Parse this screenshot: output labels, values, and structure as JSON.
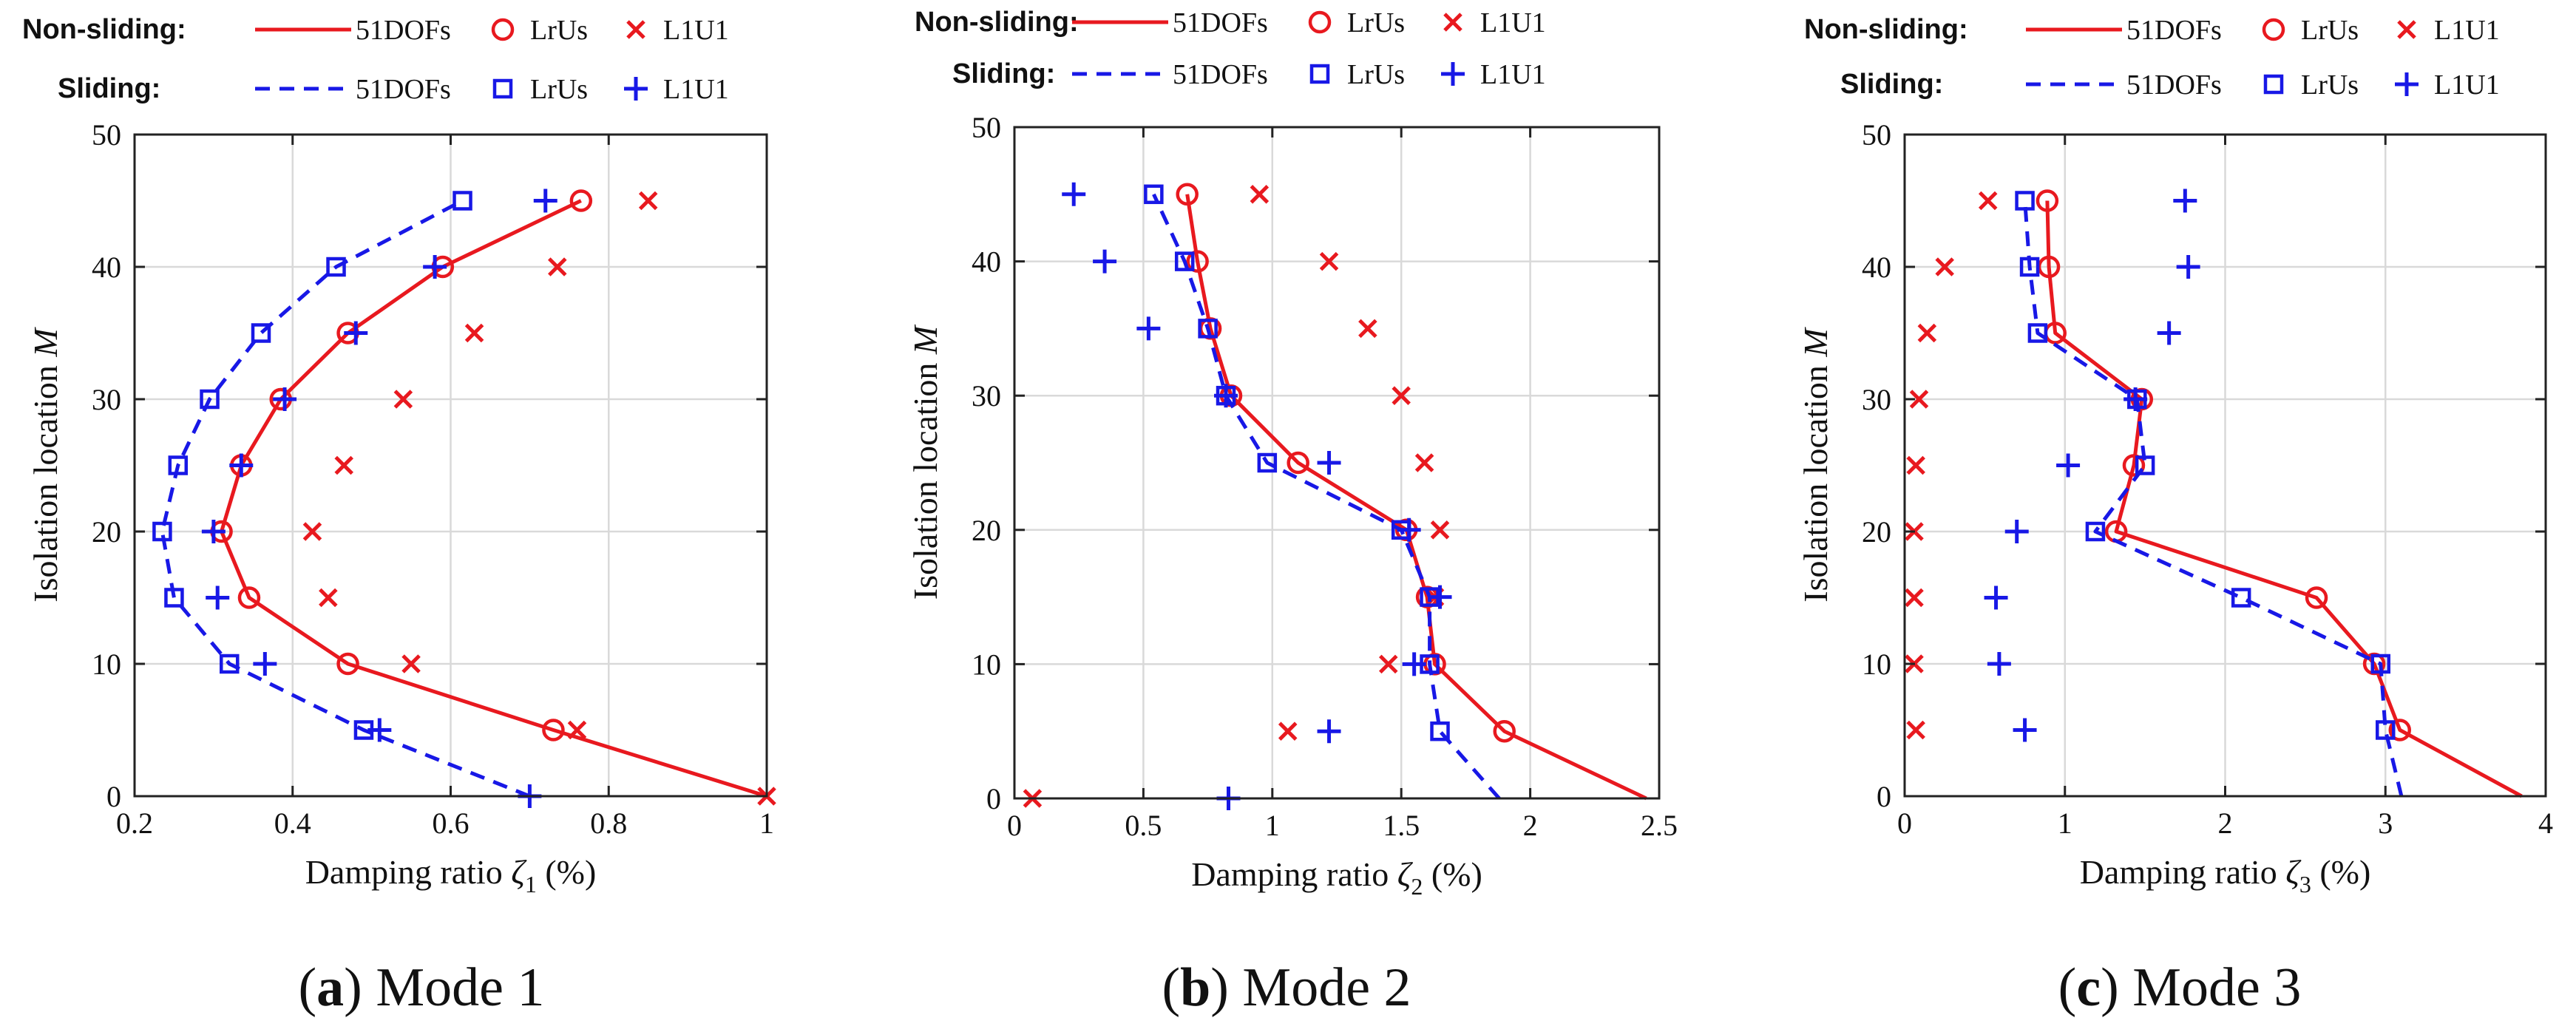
{
  "legend": {
    "nonsliding_label": "Non-sliding:",
    "sliding_label": "Sliding:",
    "entries": [
      "51DOFs",
      "LrUs",
      "L1U1"
    ]
  },
  "colors": {
    "nonsliding": "#e8191f",
    "sliding": "#1818e6",
    "grid": "#d9d9d9",
    "axis": "#222222"
  },
  "chart_data": [
    {
      "type": "line",
      "panel_label": "a",
      "caption": "Mode 1",
      "xlabel": "Damping ratio",
      "xsymbol": "ζ",
      "xsub": "1",
      "xunit": "(%)",
      "ylabel": "Isolation location",
      "ysymbol": "M",
      "xlim": [
        0.2,
        1.0
      ],
      "ylim": [
        0,
        50
      ],
      "xticks": [
        0.2,
        0.4,
        0.6,
        0.8,
        1.0
      ],
      "xticklabels": [
        "0.2",
        "0.4",
        "0.6",
        "0.8",
        "1"
      ],
      "yticks": [
        0,
        10,
        20,
        30,
        40,
        50
      ],
      "yticklabels": [
        "0",
        "10",
        "20",
        "30",
        "40",
        "50"
      ],
      "grid": true,
      "series": [
        {
          "name": "Non-sliding 51DOFs",
          "style": "solid",
          "color": "nonsliding",
          "points": [
            [
              1.0,
              0
            ],
            [
              0.73,
              5
            ],
            [
              0.47,
              10
            ],
            [
              0.345,
              15
            ],
            [
              0.31,
              20
            ],
            [
              0.335,
              25
            ],
            [
              0.385,
              30
            ],
            [
              0.47,
              35
            ],
            [
              0.59,
              40
            ],
            [
              0.765,
              45
            ]
          ]
        },
        {
          "name": "Non-sliding LrUs",
          "marker": "circle",
          "color": "nonsliding",
          "points": [
            [
              0.73,
              5
            ],
            [
              0.47,
              10
            ],
            [
              0.345,
              15
            ],
            [
              0.31,
              20
            ],
            [
              0.335,
              25
            ],
            [
              0.385,
              30
            ],
            [
              0.47,
              35
            ],
            [
              0.59,
              40
            ],
            [
              0.765,
              45
            ]
          ]
        },
        {
          "name": "Non-sliding L1U1",
          "marker": "x",
          "color": "nonsliding",
          "points": [
            [
              1.0,
              0
            ],
            [
              0.76,
              5
            ],
            [
              0.55,
              10
            ],
            [
              0.445,
              15
            ],
            [
              0.425,
              20
            ],
            [
              0.465,
              25
            ],
            [
              0.54,
              30
            ],
            [
              0.63,
              35
            ],
            [
              0.735,
              40
            ],
            [
              0.85,
              45
            ]
          ]
        },
        {
          "name": "Sliding 51DOFs",
          "style": "dashed",
          "color": "sliding",
          "points": [
            [
              0.7,
              0
            ],
            [
              0.49,
              5
            ],
            [
              0.32,
              10
            ],
            [
              0.25,
              15
            ],
            [
              0.235,
              20
            ],
            [
              0.255,
              25
            ],
            [
              0.295,
              30
            ],
            [
              0.36,
              35
            ],
            [
              0.455,
              40
            ],
            [
              0.615,
              45
            ]
          ]
        },
        {
          "name": "Sliding LrUs",
          "marker": "square",
          "color": "sliding",
          "points": [
            [
              0.49,
              5
            ],
            [
              0.32,
              10
            ],
            [
              0.25,
              15
            ],
            [
              0.235,
              20
            ],
            [
              0.255,
              25
            ],
            [
              0.295,
              30
            ],
            [
              0.36,
              35
            ],
            [
              0.455,
              40
            ],
            [
              0.615,
              45
            ]
          ]
        },
        {
          "name": "Sliding L1U1",
          "marker": "plus",
          "color": "sliding",
          "points": [
            [
              0.7,
              0
            ],
            [
              0.51,
              5
            ],
            [
              0.365,
              10
            ],
            [
              0.305,
              15
            ],
            [
              0.3,
              20
            ],
            [
              0.335,
              25
            ],
            [
              0.39,
              30
            ],
            [
              0.48,
              35
            ],
            [
              0.58,
              40
            ],
            [
              0.72,
              45
            ]
          ]
        }
      ]
    },
    {
      "type": "line",
      "panel_label": "b",
      "caption": "Mode 2",
      "xlabel": "Damping ratio",
      "xsymbol": "ζ",
      "xsub": "2",
      "xunit": "(%)",
      "ylabel": "Isolation location",
      "ysymbol": "M",
      "xlim": [
        0,
        2.5
      ],
      "ylim": [
        0,
        50
      ],
      "xticks": [
        0,
        0.5,
        1.0,
        1.5,
        2.0,
        2.5
      ],
      "xticklabels": [
        "0",
        "0.5",
        "1",
        "1.5",
        "2",
        "2.5"
      ],
      "yticks": [
        0,
        10,
        20,
        30,
        40,
        50
      ],
      "yticklabels": [
        "0",
        "10",
        "20",
        "30",
        "40",
        "50"
      ],
      "grid": true,
      "series": [
        {
          "name": "Non-sliding 51DOFs",
          "style": "solid",
          "color": "nonsliding",
          "points": [
            [
              2.45,
              0
            ],
            [
              1.9,
              5
            ],
            [
              1.63,
              10
            ],
            [
              1.6,
              15
            ],
            [
              1.52,
              20
            ],
            [
              1.1,
              25
            ],
            [
              0.84,
              30
            ],
            [
              0.76,
              35
            ],
            [
              0.71,
              40
            ],
            [
              0.67,
              45
            ]
          ]
        },
        {
          "name": "Non-sliding LrUs",
          "marker": "circle",
          "color": "nonsliding",
          "points": [
            [
              1.9,
              5
            ],
            [
              1.63,
              10
            ],
            [
              1.6,
              15
            ],
            [
              1.52,
              20
            ],
            [
              1.1,
              25
            ],
            [
              0.84,
              30
            ],
            [
              0.76,
              35
            ],
            [
              0.71,
              40
            ],
            [
              0.67,
              45
            ]
          ]
        },
        {
          "name": "Non-sliding L1U1",
          "marker": "x",
          "color": "nonsliding",
          "points": [
            [
              0.07,
              0
            ],
            [
              1.06,
              5
            ],
            [
              1.45,
              10
            ],
            [
              1.63,
              15
            ],
            [
              1.65,
              20
            ],
            [
              1.59,
              25
            ],
            [
              1.5,
              30
            ],
            [
              1.37,
              35
            ],
            [
              1.22,
              40
            ],
            [
              0.95,
              45
            ]
          ]
        },
        {
          "name": "Sliding 51DOFs",
          "style": "dashed",
          "color": "sliding",
          "points": [
            [
              1.88,
              0
            ],
            [
              1.65,
              5
            ],
            [
              1.61,
              10
            ],
            [
              1.61,
              15
            ],
            [
              1.5,
              20
            ],
            [
              0.98,
              25
            ],
            [
              0.82,
              30
            ],
            [
              0.75,
              35
            ],
            [
              0.66,
              40
            ],
            [
              0.54,
              45
            ]
          ]
        },
        {
          "name": "Sliding LrUs",
          "marker": "square",
          "color": "sliding",
          "points": [
            [
              1.65,
              5
            ],
            [
              1.61,
              10
            ],
            [
              1.61,
              15
            ],
            [
              1.5,
              20
            ],
            [
              0.98,
              25
            ],
            [
              0.82,
              30
            ],
            [
              0.75,
              35
            ],
            [
              0.66,
              40
            ],
            [
              0.54,
              45
            ]
          ]
        },
        {
          "name": "Sliding L1U1",
          "marker": "plus",
          "color": "sliding",
          "points": [
            [
              0.83,
              0
            ],
            [
              1.22,
              5
            ],
            [
              1.55,
              10
            ],
            [
              1.65,
              15
            ],
            [
              1.53,
              20
            ],
            [
              1.22,
              25
            ],
            [
              0.82,
              30
            ],
            [
              0.52,
              35
            ],
            [
              0.35,
              40
            ],
            [
              0.23,
              45
            ]
          ]
        }
      ]
    },
    {
      "type": "line",
      "panel_label": "c",
      "caption": "Mode 3",
      "xlabel": "Damping ratio",
      "xsymbol": "ζ",
      "xsub": "3",
      "xunit": "(%)",
      "ylabel": "Isolation location",
      "ysymbol": "M",
      "xlim": [
        0,
        4
      ],
      "ylim": [
        0,
        50
      ],
      "xticks": [
        0,
        1,
        2,
        3,
        4
      ],
      "xticklabels": [
        "0",
        "1",
        "2",
        "3",
        "4"
      ],
      "yticks": [
        0,
        10,
        20,
        30,
        40,
        50
      ],
      "yticklabels": [
        "0",
        "10",
        "20",
        "30",
        "40",
        "50"
      ],
      "grid": true,
      "series": [
        {
          "name": "Non-sliding 51DOFs",
          "style": "solid",
          "color": "nonsliding",
          "points": [
            [
              3.85,
              0
            ],
            [
              3.09,
              5
            ],
            [
              2.93,
              10
            ],
            [
              2.57,
              15
            ],
            [
              1.32,
              20
            ],
            [
              1.43,
              25
            ],
            [
              1.48,
              30
            ],
            [
              0.94,
              35
            ],
            [
              0.9,
              40
            ],
            [
              0.89,
              45
            ]
          ]
        },
        {
          "name": "Non-sliding LrUs",
          "marker": "circle",
          "color": "nonsliding",
          "points": [
            [
              3.09,
              5
            ],
            [
              2.93,
              10
            ],
            [
              2.57,
              15
            ],
            [
              1.32,
              20
            ],
            [
              1.43,
              25
            ],
            [
              1.48,
              30
            ],
            [
              0.94,
              35
            ],
            [
              0.9,
              40
            ],
            [
              0.89,
              45
            ]
          ]
        },
        {
          "name": "Non-sliding L1U1",
          "marker": "x",
          "color": "nonsliding",
          "points": [
            [
              0.07,
              5
            ],
            [
              0.06,
              10
            ],
            [
              0.06,
              15
            ],
            [
              0.06,
              20
            ],
            [
              0.07,
              25
            ],
            [
              0.09,
              30
            ],
            [
              0.14,
              35
            ],
            [
              0.25,
              40
            ],
            [
              0.52,
              45
            ]
          ]
        },
        {
          "name": "Sliding 51DOFs",
          "style": "dashed",
          "color": "sliding",
          "points": [
            [
              3.1,
              0
            ],
            [
              3.0,
              5
            ],
            [
              2.97,
              10
            ],
            [
              2.1,
              15
            ],
            [
              1.19,
              20
            ],
            [
              1.5,
              25
            ],
            [
              1.45,
              30
            ],
            [
              0.83,
              35
            ],
            [
              0.78,
              40
            ],
            [
              0.75,
              45
            ]
          ]
        },
        {
          "name": "Sliding LrUs",
          "marker": "square",
          "color": "sliding",
          "points": [
            [
              3.0,
              5
            ],
            [
              2.97,
              10
            ],
            [
              2.1,
              15
            ],
            [
              1.19,
              20
            ],
            [
              1.5,
              25
            ],
            [
              1.45,
              30
            ],
            [
              0.83,
              35
            ],
            [
              0.78,
              40
            ],
            [
              0.75,
              45
            ]
          ]
        },
        {
          "name": "Sliding L1U1",
          "marker": "plus",
          "color": "sliding",
          "points": [
            [
              0.75,
              5
            ],
            [
              0.59,
              10
            ],
            [
              0.57,
              15
            ],
            [
              0.7,
              20
            ],
            [
              1.02,
              25
            ],
            [
              1.44,
              30
            ],
            [
              1.65,
              35
            ],
            [
              1.77,
              40
            ],
            [
              1.75,
              45
            ]
          ]
        }
      ]
    }
  ]
}
